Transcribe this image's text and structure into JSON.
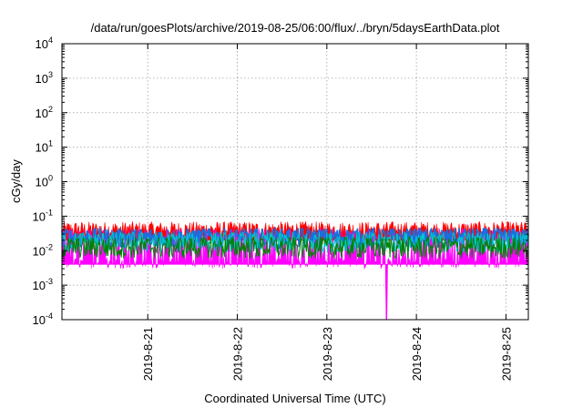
{
  "chart_data": {
    "type": "area",
    "title": "/data/run/goesPlots/archive/2019-08-25/06:00/flux/../bryn/5daysEarthData.plot",
    "xlabel": "Coordinated Universal Time (UTC)",
    "ylabel": "cGy/day",
    "yscale": "log",
    "ylim": [
      0.0001,
      10000
    ],
    "xlim": [
      "2019-08-20T01:00",
      "2019-08-25T06:00"
    ],
    "grid": true,
    "x_tick_labels": [
      "2019-8-21",
      "2019-8-22",
      "2019-8-23",
      "2019-8-24",
      "2019-8-25"
    ],
    "x_tick_values": [
      "2019-08-21T00:00",
      "2019-08-22T00:00",
      "2019-08-23T00:00",
      "2019-08-24T00:00",
      "2019-08-25T00:00"
    ],
    "y_ticks": [
      {
        "base": "10",
        "exp": "-4",
        "value": 0.0001
      },
      {
        "base": "10",
        "exp": "-3",
        "value": 0.001
      },
      {
        "base": "10",
        "exp": "-2",
        "value": 0.01
      },
      {
        "base": "10",
        "exp": "-1",
        "value": 0.1
      },
      {
        "base": "10",
        "exp": "0",
        "value": 1
      },
      {
        "base": "10",
        "exp": "1",
        "value": 10
      },
      {
        "base": "10",
        "exp": "2",
        "value": 100
      },
      {
        "base": "10",
        "exp": "3",
        "value": 1000
      },
      {
        "base": "10",
        "exp": "4",
        "value": 10000
      }
    ],
    "series": [
      {
        "color": "#ff0000",
        "values_typical": [
          0.025,
          0.07
        ]
      },
      {
        "color": "#1a6ee0",
        "values_typical": [
          0.012,
          0.045
        ]
      },
      {
        "color": "#00c8c8",
        "values_typical": [
          0.009,
          0.035
        ]
      },
      {
        "color": "#008000",
        "values_typical": [
          0.006,
          0.025
        ]
      },
      {
        "color": "#ff00ff",
        "values_typical": [
          0.003,
          0.045
        ],
        "dropout": {
          "x": "2019-08-23T16:00",
          "value": 0.0001
        }
      }
    ]
  }
}
